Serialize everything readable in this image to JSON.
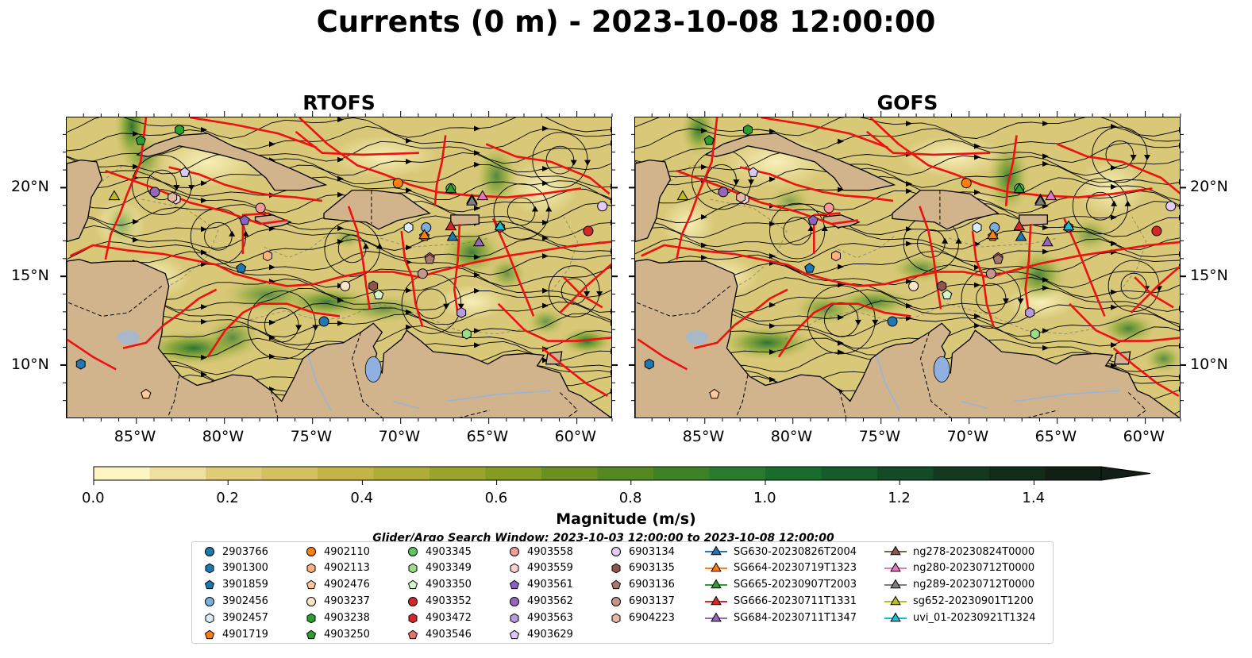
{
  "title": "Currents (0 m) - 2023-10-08 12:00:00",
  "panels": [
    {
      "title": "RTOFS"
    },
    {
      "title": "GOFS"
    }
  ],
  "chart_data": {
    "type": "heatmap",
    "title": "Currents (0 m) - 2023-10-08 12:00:00",
    "x_ticks": [
      "85°W",
      "80°W",
      "75°W",
      "70°W",
      "65°W",
      "60°W"
    ],
    "y_ticks": [
      "20°N",
      "15°N",
      "10°N"
    ],
    "xlim": [
      -89,
      -58
    ],
    "ylim": [
      7,
      24
    ],
    "colorbar": {
      "label": "Magnitude (m/s)",
      "range": [
        0.0,
        1.5
      ],
      "ticks": [
        "0.0",
        "0.2",
        "0.4",
        "0.6",
        "0.8",
        "1.0",
        "1.2",
        "1.4"
      ],
      "colors": [
        "#fdf6c3",
        "#f0e0a0",
        "#e0cc78",
        "#d4c060",
        "#c4b448",
        "#b0ac38",
        "#9aa42c",
        "#849c22",
        "#6a9020",
        "#548820",
        "#3e8226",
        "#287a2c",
        "#186c2c",
        "#155c2a",
        "#144a26",
        "#133a20",
        "#122c1a",
        "#111f14"
      ]
    },
    "search_window": "Glider/Argo Search Window: 2023-10-03 12:00:00 to 2023-10-08 12:00:00",
    "legend": [
      {
        "name": "2903766",
        "marker": "circle",
        "color": "#1f77b4"
      },
      {
        "name": "3901300",
        "marker": "hexagon",
        "color": "#1f77b4"
      },
      {
        "name": "3901859",
        "marker": "pentagon",
        "color": "#1f77b4"
      },
      {
        "name": "3902456",
        "marker": "circle",
        "color": "#79b0e0"
      },
      {
        "name": "3902457",
        "marker": "hexagon",
        "color": "#dcecfa"
      },
      {
        "name": "4901719",
        "marker": "pentagon",
        "color": "#ff7f0e"
      },
      {
        "name": "4902110",
        "marker": "circle",
        "color": "#ff7f0e"
      },
      {
        "name": "4902113",
        "marker": "hexagon",
        "color": "#ffb27a"
      },
      {
        "name": "4902476",
        "marker": "pentagon",
        "color": "#ffc89a"
      },
      {
        "name": "4903237",
        "marker": "circle",
        "color": "#ffe4c8"
      },
      {
        "name": "4903238",
        "marker": "hexagon",
        "color": "#2ca02c"
      },
      {
        "name": "4903250",
        "marker": "pentagon",
        "color": "#2ca02c"
      },
      {
        "name": "4903345",
        "marker": "circle",
        "color": "#5ec45e"
      },
      {
        "name": "4903349",
        "marker": "hexagon",
        "color": "#98df8a"
      },
      {
        "name": "4903350",
        "marker": "pentagon",
        "color": "#d4f5cc"
      },
      {
        "name": "4903352",
        "marker": "circle",
        "color": "#d62728"
      },
      {
        "name": "4903472",
        "marker": "hexagon",
        "color": "#d62728"
      },
      {
        "name": "4903546",
        "marker": "pentagon",
        "color": "#ee6e6e"
      },
      {
        "name": "4903558",
        "marker": "circle",
        "color": "#f59a9a"
      },
      {
        "name": "4903559",
        "marker": "hexagon",
        "color": "#fcd0d0"
      },
      {
        "name": "4903561",
        "marker": "pentagon",
        "color": "#8c62c4"
      },
      {
        "name": "4903562",
        "marker": "circle",
        "color": "#9467bd"
      },
      {
        "name": "4903563",
        "marker": "hexagon",
        "color": "#b99ae0"
      },
      {
        "name": "4903629",
        "marker": "pentagon",
        "color": "#dcc8f5"
      },
      {
        "name": "6903134",
        "marker": "circle",
        "color": "#e6ccf5"
      },
      {
        "name": "6903135",
        "marker": "hexagon",
        "color": "#8c564b"
      },
      {
        "name": "6903136",
        "marker": "pentagon",
        "color": "#a87a6e"
      },
      {
        "name": "6903137",
        "marker": "circle",
        "color": "#c4978a"
      },
      {
        "name": "6904223",
        "marker": "hexagon",
        "color": "#e6b8a8"
      },
      {
        "name": "SG630-20230826T2004",
        "marker": "triangle",
        "color": "#1f77b4"
      },
      {
        "name": "SG664-20230719T1323",
        "marker": "triangle",
        "color": "#ff7f0e"
      },
      {
        "name": "SG665-20230907T2003",
        "marker": "triangle",
        "color": "#2ca02c"
      },
      {
        "name": "SG666-20230711T1331",
        "marker": "triangle",
        "color": "#d62728"
      },
      {
        "name": "SG684-20230711T1347",
        "marker": "triangle",
        "color": "#9467bd"
      },
      {
        "name": "ng278-20230824T0000",
        "marker": "triangle",
        "color": "#8c564b"
      },
      {
        "name": "ng280-20230712T0000",
        "marker": "triangle",
        "color": "#e377c2"
      },
      {
        "name": "ng289-20230712T0000",
        "marker": "triangle",
        "color": "#7f7f7f"
      },
      {
        "name": "sg652-20230901T1200",
        "marker": "triangle",
        "color": "#bcbd22"
      },
      {
        "name": "uvi_01-20230921T1324",
        "marker": "triangle",
        "color": "#17becf"
      }
    ],
    "markers": [
      {
        "name": "2903766",
        "lon": -74.4,
        "lat": 12.5
      },
      {
        "name": "3901300",
        "lon": -88.2,
        "lat": 10.1
      },
      {
        "name": "3901859",
        "lon": -79.1,
        "lat": 15.5
      },
      {
        "name": "3902456",
        "lon": -68.6,
        "lat": 17.8
      },
      {
        "name": "3902457",
        "lon": -69.6,
        "lat": 17.8
      },
      {
        "name": "4901719",
        "lon": -68.7,
        "lat": 17.3
      },
      {
        "name": "4902110",
        "lon": -70.2,
        "lat": 20.3
      },
      {
        "name": "4902113",
        "lon": -77.6,
        "lat": 16.2
      },
      {
        "name": "4902476",
        "lon": -84.5,
        "lat": 8.4
      },
      {
        "name": "4903237",
        "lon": -73.2,
        "lat": 14.5
      },
      {
        "name": "4903238",
        "lon": -82.6,
        "lat": 23.3
      },
      {
        "name": "4903250",
        "lon": -84.8,
        "lat": 22.7
      },
      {
        "name": "4903345",
        "lon": -67.2,
        "lat": 20.0
      },
      {
        "name": "4903349",
        "lon": -66.3,
        "lat": 11.8
      },
      {
        "name": "4903350",
        "lon": -71.3,
        "lat": 14.0
      },
      {
        "name": "4903352",
        "lon": -59.4,
        "lat": 17.6
      },
      {
        "name": "4903472",
        "lon": -64.4,
        "lat": 17.8
      },
      {
        "name": "4903546",
        "lon": -68.4,
        "lat": 16.1
      },
      {
        "name": "4903558",
        "lon": -78.0,
        "lat": 18.9
      },
      {
        "name": "4903559",
        "lon": -82.8,
        "lat": 19.4
      },
      {
        "name": "4903561",
        "lon": -78.9,
        "lat": 18.2
      },
      {
        "name": "4903562",
        "lon": -84.0,
        "lat": 19.8
      },
      {
        "name": "4903563",
        "lon": -66.6,
        "lat": 13.0
      },
      {
        "name": "4903629",
        "lon": -82.3,
        "lat": 20.9
      },
      {
        "name": "6903134",
        "lon": -58.6,
        "lat": 19.0
      },
      {
        "name": "6903135",
        "lon": -71.6,
        "lat": 14.5
      },
      {
        "name": "6903136",
        "lon": -68.4,
        "lat": 16.0
      },
      {
        "name": "6903137",
        "lon": -68.8,
        "lat": 15.2
      },
      {
        "name": "6904223",
        "lon": -83.0,
        "lat": 19.5
      },
      {
        "name": "SG630-20230826T2004",
        "lon": -67.1,
        "lat": 17.3
      },
      {
        "name": "SG664-20230719T1323",
        "lon": -68.7,
        "lat": 17.4
      },
      {
        "name": "SG665-20230907T2003",
        "lon": -67.2,
        "lat": 20.0
      },
      {
        "name": "SG666-20230711T1331",
        "lon": -67.2,
        "lat": 17.9
      },
      {
        "name": "SG684-20230711T1347",
        "lon": -65.6,
        "lat": 17.0
      },
      {
        "name": "ng278-20230824T0000",
        "lon": -66.0,
        "lat": 19.4
      },
      {
        "name": "ng280-20230712T0000",
        "lon": -65.4,
        "lat": 19.6
      },
      {
        "name": "ng289-20230712T0000",
        "lon": -66.0,
        "lat": 19.3
      },
      {
        "name": "sg652-20230901T1200",
        "lon": -86.3,
        "lat": 19.6
      },
      {
        "name": "uvi_01-20230921T1324",
        "lon": -64.4,
        "lat": 17.9
      }
    ]
  }
}
